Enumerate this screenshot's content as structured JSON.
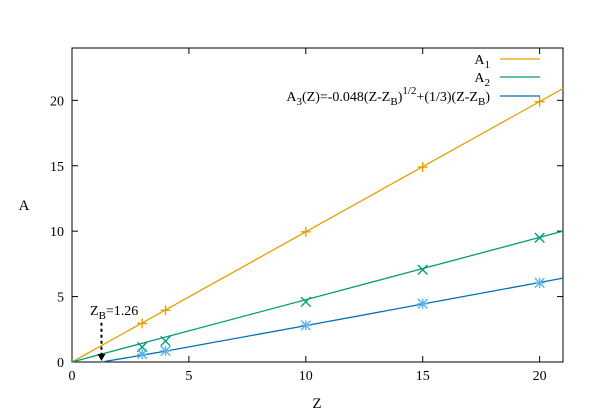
{
  "chart_data": {
    "type": "line",
    "xlabel": "Z",
    "ylabel": "A",
    "xlim": [
      0,
      21
    ],
    "ylim": [
      0,
      24
    ],
    "xticks": [
      0,
      5,
      10,
      15,
      20
    ],
    "yticks": [
      0,
      5,
      10,
      15,
      20
    ],
    "grid": false,
    "legend_position": "top-right",
    "annotation": {
      "text": "Z",
      "subscript": "B",
      "suffix": "=1.26",
      "x": 1.26
    },
    "series": [
      {
        "name": "A",
        "name_sub": "1",
        "color": "#e69f00",
        "marker": "plus",
        "line": {
          "x": [
            0,
            21
          ],
          "y": [
            0,
            20.9
          ]
        },
        "points": {
          "x": [
            3,
            4,
            10,
            15,
            20
          ],
          "y": [
            2.95,
            3.95,
            9.95,
            14.9,
            19.9
          ]
        }
      },
      {
        "name": "A",
        "name_sub": "2",
        "color": "#009e73",
        "marker": "x",
        "line": {
          "x": [
            0,
            21
          ],
          "y": [
            0,
            10.0
          ]
        },
        "points": {
          "x": [
            3,
            4,
            10,
            15,
            20
          ],
          "y": [
            1.15,
            1.6,
            4.6,
            7.05,
            9.5
          ]
        }
      },
      {
        "name": "A",
        "name_sub": "3",
        "name_rest": "(Z)=-0.048(Z-Z",
        "name_sub2": "B",
        "name_rest2": ")",
        "name_sup": "1/2",
        "name_rest3": "+(1/3)(Z-Z",
        "name_sub3": "B",
        "name_rest4": ")",
        "color": "#0072b2",
        "marker_color": "#56b4e9",
        "marker": "star",
        "line": {
          "x": [
            1.26,
            3,
            4,
            10,
            15,
            20,
            21
          ],
          "y": [
            0,
            0.52,
            0.83,
            2.78,
            4.43,
            6.08,
            6.41
          ]
        },
        "points": {
          "x": [
            3,
            4,
            10,
            15,
            20
          ],
          "y": [
            0.6,
            0.85,
            2.8,
            4.45,
            6.05
          ]
        }
      }
    ]
  }
}
